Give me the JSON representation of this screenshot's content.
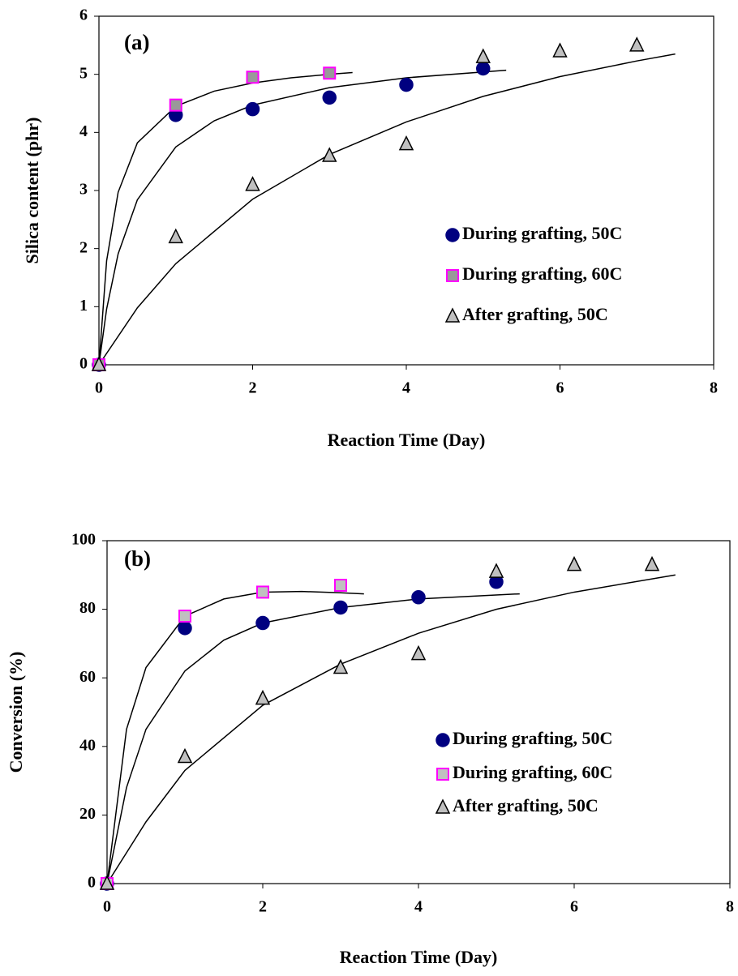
{
  "chart_data": [
    {
      "type": "scatter",
      "annotation": "(a)",
      "x_label": "Reaction Time (Day)",
      "y_label": "Silica content (phr)",
      "xlim": [
        0,
        8
      ],
      "xticks": [
        0,
        2,
        4,
        6,
        8
      ],
      "ylim": [
        0,
        6
      ],
      "yticks": [
        0,
        1,
        2,
        3,
        4,
        5,
        6
      ],
      "series": [
        {
          "name": "During grafting, 50C",
          "marker": "circle",
          "color": "#000080",
          "edge": "#000080",
          "x": [
            0,
            1,
            2,
            3,
            4,
            5
          ],
          "values": [
            0,
            4.3,
            4.4,
            4.6,
            4.82,
            5.1
          ],
          "trend_x": [
            0,
            0.1,
            0.25,
            0.5,
            1,
            1.5,
            2,
            3,
            4,
            5.3
          ],
          "trend_values": [
            0,
            0.96,
            1.91,
            2.84,
            3.75,
            4.2,
            4.47,
            4.77,
            4.94,
            5.07
          ]
        },
        {
          "name": "During grafting, 60C",
          "marker": "square",
          "color": "#999999",
          "edge": "#ff00ff",
          "x": [
            0,
            1,
            2,
            3
          ],
          "values": [
            0,
            4.47,
            4.95,
            5.02
          ],
          "trend_x": [
            0,
            0.1,
            0.25,
            0.5,
            1,
            1.5,
            2,
            2.5,
            3,
            3.3
          ],
          "trend_values": [
            0,
            1.79,
            2.97,
            3.82,
            4.45,
            4.71,
            4.85,
            4.94,
            5.0,
            5.03
          ]
        },
        {
          "name": "After grafting, 50C",
          "marker": "triangle",
          "color": "#c0c0c0",
          "edge": "#000000",
          "x": [
            0,
            1,
            2,
            3,
            4,
            5,
            6,
            7
          ],
          "values": [
            0,
            2.2,
            3.1,
            3.6,
            3.8,
            5.3,
            5.4,
            5.5
          ],
          "trend_x": [
            0,
            0.5,
            1,
            2,
            3,
            4,
            5,
            6,
            7,
            7.5
          ],
          "trend_values": [
            0,
            0.98,
            1.74,
            2.85,
            3.62,
            4.18,
            4.62,
            4.96,
            5.23,
            5.35
          ]
        }
      ]
    },
    {
      "type": "scatter",
      "annotation": "(b)",
      "x_label": "Reaction Time (Day)",
      "y_label": "Conversion (%)",
      "xlim": [
        0,
        8
      ],
      "xticks": [
        0,
        2,
        4,
        6,
        8
      ],
      "ylim": [
        0,
        100
      ],
      "yticks": [
        0,
        20,
        40,
        60,
        80,
        100
      ],
      "series": [
        {
          "name": "During grafting, 50C",
          "marker": "circle",
          "color": "#000080",
          "edge": "#000080",
          "x": [
            0,
            1,
            2,
            3,
            4,
            5
          ],
          "values": [
            0,
            74.5,
            76,
            80.5,
            83.5,
            88
          ],
          "trend_x": [
            0,
            0.25,
            0.5,
            1,
            1.5,
            2,
            3,
            4,
            5.3
          ],
          "trend_values": [
            0,
            28,
            45,
            62,
            71,
            76,
            80.5,
            83,
            84.5
          ]
        },
        {
          "name": "During grafting, 60C",
          "marker": "square",
          "color": "#c0c0c0",
          "edge": "#ff00ff",
          "x": [
            0,
            1,
            2,
            3
          ],
          "values": [
            0,
            78,
            85,
            87
          ],
          "trend_x": [
            0,
            0.25,
            0.5,
            1,
            1.5,
            2,
            2.5,
            3,
            3.3
          ],
          "trend_values": [
            0,
            45,
            63,
            78,
            83,
            85,
            85.2,
            84.8,
            84.5
          ]
        },
        {
          "name": "After grafting, 50C",
          "marker": "triangle",
          "color": "#c0c0c0",
          "edge": "#000000",
          "x": [
            0,
            1,
            2,
            3,
            4,
            5,
            6,
            7
          ],
          "values": [
            0,
            37,
            54,
            63,
            67,
            91,
            93,
            93
          ],
          "trend_x": [
            0,
            0.5,
            1,
            2,
            3,
            4,
            5,
            6,
            7.3
          ],
          "trend_values": [
            0,
            18,
            33,
            52,
            64,
            73,
            80,
            85,
            90
          ]
        }
      ]
    }
  ]
}
